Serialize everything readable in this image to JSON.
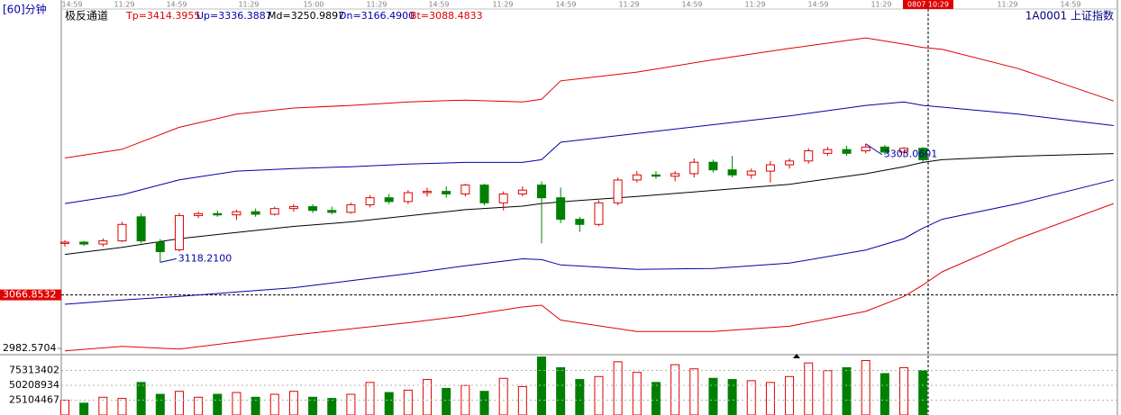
{
  "chart_data": {
    "type": "candlestick",
    "period_label": "[60]分钟",
    "indicator_name": "极反通道",
    "symbol": "1A0001 上证指数",
    "time_labels": [
      "14:59",
      "11:29",
      "14:59",
      "11:29",
      "15:00",
      "11:29",
      "14:59",
      "11:29",
      "14:59",
      "11:29",
      "14:59",
      "11:29",
      "14:59",
      "11:29",
      "0807 10:29",
      "11:29",
      "14:59"
    ],
    "ylim": [
      2974,
      3517.6
    ],
    "yticks": [
      3066.8532,
      2982.5704
    ],
    "open": [
      3148,
      3150,
      3147,
      3152,
      3190,
      3150,
      3138,
      3192,
      3195,
      3193,
      3198,
      3194,
      3203,
      3206,
      3200,
      3197,
      3209,
      3220,
      3214,
      3228,
      3230,
      3226,
      3240,
      3212,
      3226,
      3240,
      3220,
      3186,
      3178,
      3212,
      3248,
      3256,
      3254,
      3258,
      3276,
      3264,
      3256,
      3262,
      3272,
      3278,
      3290,
      3296,
      3294,
      3300,
      3292,
      3298
    ],
    "high": [
      3153,
      3152,
      3156,
      3182,
      3195,
      3155,
      3196,
      3198,
      3200,
      3201,
      3203,
      3206,
      3210,
      3210,
      3206,
      3212,
      3224,
      3226,
      3232,
      3236,
      3238,
      3242,
      3242,
      3230,
      3238,
      3246,
      3236,
      3190,
      3216,
      3252,
      3262,
      3262,
      3262,
      3282,
      3280,
      3286,
      3266,
      3278,
      3282,
      3298,
      3300,
      3302,
      3305.0601,
      3303,
      3300,
      3300
    ],
    "low": [
      3143,
      3144,
      3143,
      3150,
      3148,
      3118.21,
      3135,
      3188,
      3190,
      3185,
      3190,
      3192,
      3198,
      3196,
      3194,
      3195,
      3205,
      3210,
      3210,
      3222,
      3220,
      3222,
      3208,
      3200,
      3222,
      3148,
      3180,
      3166,
      3175,
      3208,
      3244,
      3250,
      3246,
      3252,
      3260,
      3252,
      3250,
      3244,
      3266,
      3274,
      3286,
      3286,
      3290,
      3288,
      3284,
      3276
    ],
    "close": [
      3150,
      3147,
      3152,
      3178,
      3152,
      3135,
      3192,
      3195,
      3193,
      3198,
      3194,
      3203,
      3206,
      3200,
      3197,
      3209,
      3220,
      3214,
      3228,
      3230,
      3226,
      3240,
      3212,
      3226,
      3232,
      3220,
      3186,
      3178,
      3212,
      3248,
      3256,
      3254,
      3258,
      3276,
      3264,
      3256,
      3262,
      3272,
      3278,
      3294,
      3296,
      3290,
      3300,
      3292,
      3298,
      3280
    ],
    "annotations": [
      {
        "x": 42,
        "value": 3305.0601,
        "label": "3305.0601"
      },
      {
        "x": 5,
        "value": 3118.21,
        "label": "3118.2100"
      }
    ],
    "band_x": [
      0,
      3,
      6,
      9,
      12,
      15,
      18,
      21,
      24,
      25,
      26,
      30,
      34,
      38,
      42,
      44,
      45,
      46,
      50,
      55
    ],
    "bands": [
      {
        "label": "Tp=3414.3955",
        "color": "#e00000",
        "values": [
          3282.7,
          3296.5,
          3331.1,
          3351.8,
          3361.5,
          3365.6,
          3371.1,
          3373.9,
          3371.1,
          3375.3,
          3404.3,
          3418.1,
          3437.5,
          3455.4,
          3472.0,
          3462.3,
          3456.8,
          3454.0,
          3423.6,
          3372.5
        ]
      },
      {
        "label": "Up=3336.3887",
        "color": "#0000a8",
        "values": [
          3210.9,
          3224.7,
          3248.2,
          3262.0,
          3266.1,
          3268.9,
          3273.0,
          3275.8,
          3275.8,
          3280.0,
          3307.6,
          3321.4,
          3335.2,
          3349.0,
          3365.6,
          3371.1,
          3365.6,
          3362.9,
          3351.8,
          3333.8
        ]
      },
      {
        "label": "Md=3250.9897",
        "color": "#000000",
        "values": [
          3130.7,
          3141.8,
          3155.6,
          3165.3,
          3174.9,
          3181.9,
          3191.5,
          3201.2,
          3206.7,
          3210.9,
          3213.6,
          3221.9,
          3231.6,
          3241.3,
          3257.8,
          3268.9,
          3275.8,
          3280.0,
          3285.5,
          3289.6
        ]
      },
      {
        "label": "Dn=3166.4900",
        "color": "#0000a8",
        "values": [
          3052.0,
          3058.9,
          3064.4,
          3071.3,
          3078.2,
          3089.3,
          3100.3,
          3112.8,
          3123.8,
          3122.4,
          3114.1,
          3107.2,
          3108.6,
          3116.9,
          3137.6,
          3155.6,
          3172.2,
          3186.0,
          3210.9,
          3248.2
        ]
      },
      {
        "label": "Bt=3088.4833",
        "color": "#e00000",
        "values": [
          2978.7,
          2985.6,
          2981.5,
          2992.5,
          3003.6,
          3013.3,
          3022.9,
          3034.0,
          3047.8,
          3050.6,
          3027.1,
          3009.1,
          3009.1,
          3017.4,
          3040.9,
          3064.4,
          3082.4,
          3103.1,
          3155.6,
          3210.9
        ]
      }
    ],
    "volume": [
      25000000,
      20000000,
      30000000,
      28000000,
      55000000,
      35000000,
      40000000,
      30000000,
      35000000,
      38000000,
      30000000,
      35000000,
      40000000,
      30000000,
      28000000,
      35000000,
      55000000,
      38000000,
      42000000,
      60000000,
      45000000,
      50000000,
      40000000,
      62000000,
      48000000,
      98000000,
      80000000,
      60000000,
      65000000,
      90000000,
      72000000,
      55000000,
      85000000,
      78000000,
      62000000,
      60000000,
      58000000,
      55000000,
      65000000,
      88000000,
      75000000,
      80000000,
      92000000,
      70000000,
      80000000,
      75000000
    ],
    "volume_ylim": [
      0,
      100417868
    ],
    "volume_yticks": [
      75313402,
      50208934,
      25104467
    ],
    "up_color": "#e00000",
    "down_color": "#008000"
  }
}
